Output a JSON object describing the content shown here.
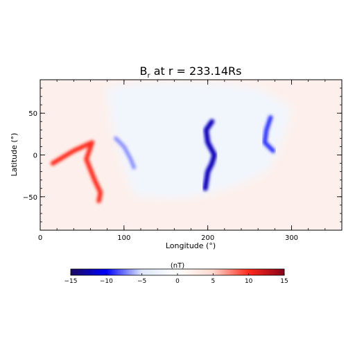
{
  "chart_data": {
    "type": "heatmap",
    "title_main": "B",
    "title_sub": "r",
    "title_rest": " at r = 233.14Rs",
    "xlabel": "Longitude (°)",
    "ylabel": "Latitude (°)",
    "xlim": [
      0,
      360
    ],
    "ylim": [
      -90,
      90
    ],
    "x_ticks": [
      0,
      100,
      200,
      300
    ],
    "y_ticks": [
      -50,
      0,
      50
    ],
    "x_tick_labels": [
      "0",
      "100",
      "200",
      "300"
    ],
    "y_tick_labels": [
      "−50",
      "0",
      "50"
    ],
    "colorbar": {
      "label": "(nT)",
      "range": [
        -15,
        15
      ],
      "ticks": [
        -15,
        -10,
        -5,
        0,
        5,
        10,
        15
      ],
      "tick_labels": [
        "−15",
        "−10",
        "−5",
        "0",
        "5",
        "10",
        "15"
      ],
      "colormap": [
        "#1a0a5a",
        "#0000ff",
        "#dde8fb",
        "#ffffff",
        "#fbd9d0",
        "#ff2a1a",
        "#8a0018"
      ]
    },
    "regions": [
      {
        "name": "negative-polarity sector",
        "sign": "negative",
        "approx_value": -2,
        "x_range": [
          60,
          300
        ],
        "y_range": [
          -60,
          88
        ]
      },
      {
        "name": "positive-polarity sector west",
        "sign": "positive",
        "approx_value": 2,
        "x_range": [
          0,
          70
        ],
        "y_range": [
          -90,
          90
        ]
      },
      {
        "name": "positive-polarity sector east",
        "sign": "positive",
        "approx_value": 2,
        "x_range": [
          270,
          360
        ],
        "y_range": [
          -90,
          90
        ]
      }
    ],
    "features": [
      {
        "name": "red ridge",
        "sign": "positive",
        "approx_value": 10,
        "points": [
          [
            15,
            -10
          ],
          [
            40,
            5
          ],
          [
            62,
            15
          ],
          [
            55,
            -5
          ],
          [
            65,
            -30
          ],
          [
            72,
            -45
          ],
          [
            70,
            -55
          ]
        ]
      },
      {
        "name": "blue ridge 1",
        "sign": "negative",
        "approx_value": -7,
        "points": [
          [
            90,
            20
          ],
          [
            100,
            10
          ],
          [
            108,
            -5
          ],
          [
            112,
            -15
          ]
        ]
      },
      {
        "name": "blue ridge 2",
        "sign": "negative",
        "approx_value": -12,
        "points": [
          [
            205,
            40
          ],
          [
            198,
            30
          ],
          [
            200,
            15
          ],
          [
            208,
            0
          ],
          [
            205,
            -10
          ],
          [
            200,
            -20
          ],
          [
            197,
            -40
          ]
        ]
      },
      {
        "name": "blue ridge 3",
        "sign": "negative",
        "approx_value": -9,
        "points": [
          [
            275,
            45
          ],
          [
            270,
            30
          ],
          [
            268,
            15
          ],
          [
            278,
            5
          ]
        ]
      }
    ]
  }
}
